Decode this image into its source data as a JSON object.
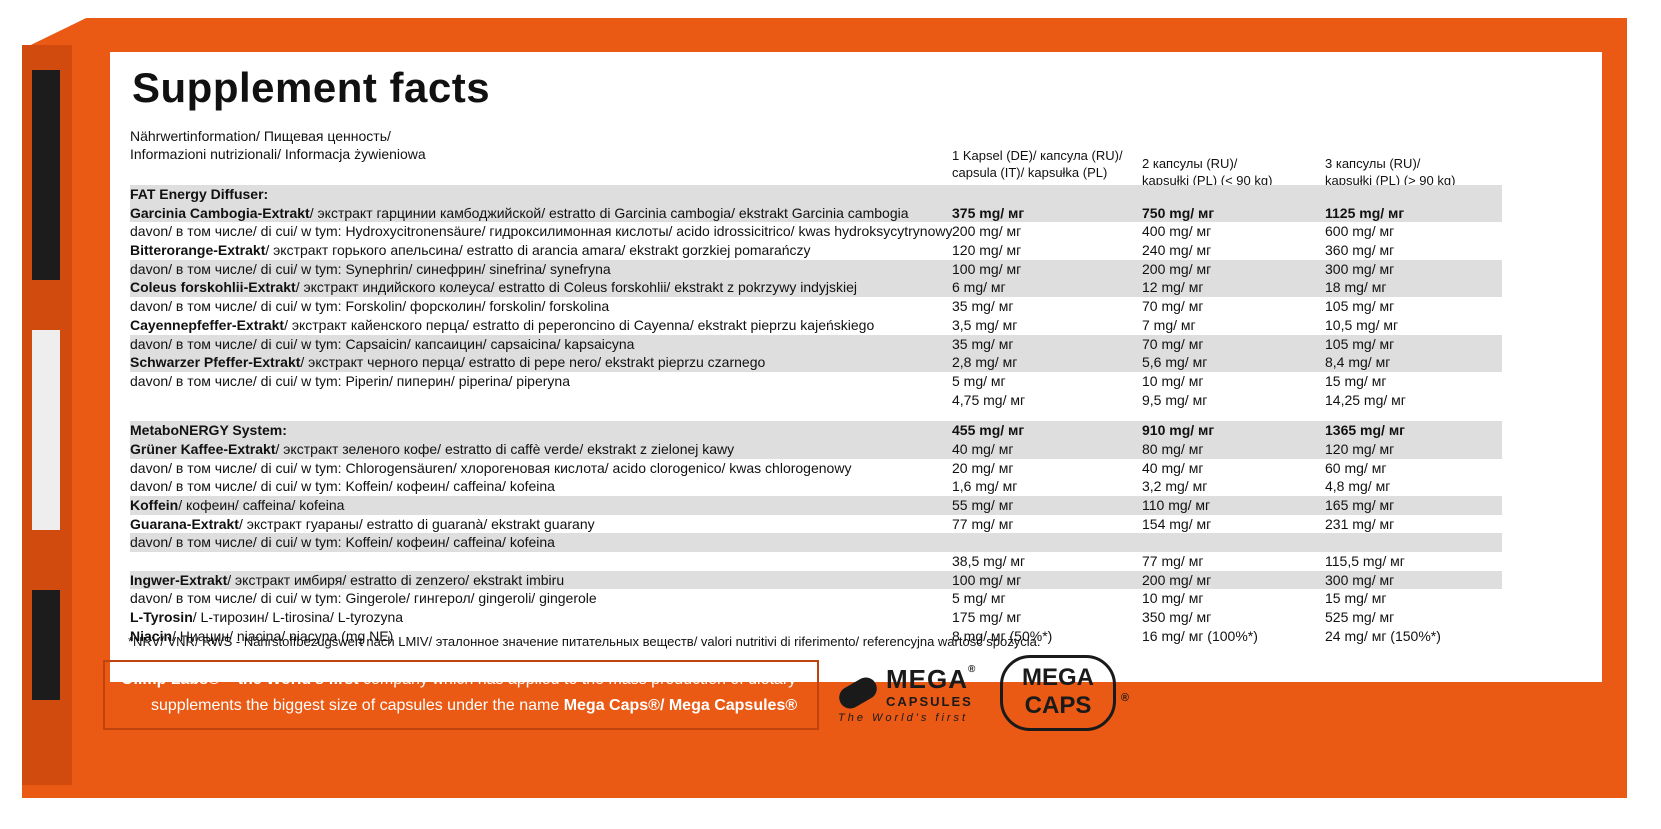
{
  "panel": {
    "title": "Supplement facts",
    "intro_line1": "Nährwertinformation/ Пищевая ценность/",
    "intro_line2": "Informazioni nutrizionali/ Informacja żywieniowa",
    "col1_line1": "1 Kapsel (DE)/ капсула (RU)/",
    "col1_line2": "capsula (IT)/ kapsułka (PL)",
    "col2_line1": "2 капсулы (RU)/",
    "col2_line2": "kapsułki (PL) (< 90 kg)",
    "col3_line1": "3 капсулы (RU)/",
    "col3_line2": "kapsułki (PL) (> 90 kg)"
  },
  "rows": [
    {
      "bold": "FAT Energy Diffuser:",
      "rest": "",
      "c1": "",
      "c2": "",
      "c3": ""
    },
    {
      "bold": "Garcinia Cambogia-Extrakt",
      "rest": "/ экстракт гарцинии камбоджийской/ estratto di Garcinia cambogia/ ekstrakt Garcinia cambogia",
      "c1": "375 mg/ мг",
      "c2": "750 mg/ мг",
      "c3": "1125 mg/ мг",
      "vb": true
    },
    {
      "bold": "",
      "rest": "davon/ в том числе/ di cui/ w tym: Hydroxycitronensäure/ гидроксилимонная кислоты/ acido idrossicitrico/ kwas hydroksycytrynowy",
      "c1": "200 mg/ мг",
      "c2": "400 mg/ мг",
      "c3": "600 mg/ мг"
    },
    {
      "bold": "Bitterorange-Extrakt",
      "rest": "/ экстракт горького апельсина/ estratto di arancia amara/ ekstrakt gorzkiej pomarańczy",
      "c1": "120 mg/ мг",
      "c2": "240 mg/ мг",
      "c3": "360 mg/ мг"
    },
    {
      "bold": "",
      "rest": "davon/ в том числе/ di cui/ w tym: Synephrin/ синефрин/ sinefrina/ synefryna",
      "c1": "100 mg/ мг",
      "c2": "200 mg/ мг",
      "c3": "300 mg/ мг"
    },
    {
      "bold": "Coleus forskohlii-Extrakt",
      "rest": "/ экстракт индийского колеуса/ estratto di Coleus forskohlii/ ekstrakt z pokrzywy indyjskiej",
      "c1": "6 mg/ мг",
      "c2": "12 mg/ мг",
      "c3": "18 mg/ мг"
    },
    {
      "bold": "",
      "rest": "davon/ в том числе/ di cui/ w tym: Forskolin/ форсколин/ forskolin/ forskolina",
      "c1": "35 mg/ мг",
      "c2": "70 mg/ мг",
      "c3": "105 mg/ мг"
    },
    {
      "bold": "Cayennepfeffer-Extrakt",
      "rest": "/ экстракт кайенского перца/ estratto di peperoncino di Cayenna/ ekstrakt pieprzu kajeńskiego",
      "c1": "3,5 mg/ мг",
      "c2": "7 mg/ мг",
      "c3": "10,5 mg/ мг"
    },
    {
      "bold": "",
      "rest": "davon/ в том числе/ di cui/ w tym: Capsaicin/ капсаицин/ capsaicina/ kapsaicyna",
      "c1": "35 mg/ мг",
      "c2": "70 mg/ мг",
      "c3": "105 mg/ мг"
    },
    {
      "bold": "Schwarzer Pfeffer-Extrakt",
      "rest": "/ экстракт черного перца/ estratto di pepe nero/ ekstrakt pieprzu czarnego",
      "c1": "2,8 mg/ мг",
      "c2": "5,6 mg/ мг",
      "c3": "8,4 mg/ мг"
    },
    {
      "bold": "",
      "rest": "davon/ в том числе/ di cui/ w tym: Piperin/ пиперин/ piperina/ piperyna",
      "c1": "5 mg/ мг",
      "c2": "10 mg/ мг",
      "c3": "15 mg/ мг"
    },
    {
      "bold": "",
      "rest": "",
      "c1": "4,75 mg/ мг",
      "c2": "9,5 mg/ мг",
      "c3": "14,25 mg/ мг"
    },
    {
      "bold": "MetaboNERGY System:",
      "rest": "",
      "c1": "455 mg/ мг",
      "c2": "910 mg/ мг",
      "c3": "1365 mg/ мг",
      "vb": true
    },
    {
      "bold": "Grüner Kaffee-Extrakt",
      "rest": "/ экстракт зеленого кофе/ estratto di caffè verde/ ekstrakt z zielonej kawy",
      "c1": "40 mg/ мг",
      "c2": "80 mg/ мг",
      "c3": "120 mg/ мг"
    },
    {
      "bold": "",
      "rest": "davon/ в том числе/ di cui/ w tym: Chlorogensäuren/ хлорогеновая кислота/ acido clorogenico/ kwas chlorogenowy",
      "c1": "20 mg/ мг",
      "c2": "40 mg/ мг",
      "c3": "60 mg/ мг"
    },
    {
      "bold": "",
      "rest": "davon/ в том числе/ di cui/ w tym: Koffein/ кофеин/ caffeina/ kofeina",
      "c1": "1,6 mg/ мг",
      "c2": "3,2 mg/ мг",
      "c3": "4,8 mg/ мг"
    },
    {
      "bold": "Koffein",
      "rest": "/ кофеин/ caffeina/ kofeina",
      "c1": "55 mg/ мг",
      "c2": "110 mg/ мг",
      "c3": "165 mg/ мг"
    },
    {
      "bold": "Guarana-Extrakt",
      "rest": "/ экстракт гуараны/ estratto di guaranà/ ekstrakt guarany",
      "c1": "77 mg/ мг",
      "c2": "154 mg/ мг",
      "c3": "231 mg/ мг"
    },
    {
      "bold": "",
      "rest": "davon/ в том числе/ di cui/ w tym: Koffein/ кофеин/ caffeina/ kofeina",
      "c1": "",
      "c2": "",
      "c3": ""
    },
    {
      "bold": "",
      "rest": "",
      "c1": "38,5 mg/ мг",
      "c2": "77 mg/ мг",
      "c3": "115,5 mg/ мг"
    },
    {
      "bold": "Ingwer-Extrakt",
      "rest": "/ экстракт имбиря/ estratto di zenzero/ ekstrakt imbiru",
      "c1": "100 mg/ мг",
      "c2": "200 mg/ мг",
      "c3": "300 mg/ мг"
    },
    {
      "bold": "",
      "rest": "davon/ в том числе/ di cui/ w tym: Gingerole/ гингерол/ gingeroli/ gingerole",
      "c1": "5 mg/ мг",
      "c2": "10 mg/ мг",
      "c3": "15 mg/ мг"
    },
    {
      "bold": "L-Tyrosin",
      "rest": "/ L-тирозин/ L-tirosina/ L-tyrozyna",
      "c1": "175 mg/ мг",
      "c2": "350 mg/ мг",
      "c3": "525 mg/ мг"
    },
    {
      "bold": "Niacin",
      "rest": "/ Ниацин/ niacina/ niacyna (mg NE)",
      "c1": "8 mg/ мг (50%*)",
      "c2": "16 mg/ мг (100%*)",
      "c3": "24 mg/ мг (150%*)"
    }
  ],
  "footnote": "*NRV/ VNR/ RWS - Nährstoffbezugswert nach LMIV/ эталонное значение питательных веществ/ valori nutritivi di riferimento/ referencyjna wartość spożycia.",
  "claim": {
    "l1_bold": "Olimp Labs® – the World's first",
    "l1_rest": " company which has applied to the mass production of dietary",
    "l2_rest": "supplements the biggest size of capsules under the name ",
    "l2_bold": "Mega Caps®/ Mega Capsules®"
  },
  "logo1": {
    "mega": "MEGA",
    "capsules": "CAPSULES",
    "tagline": "The World's first",
    "reg": "®"
  },
  "logo2": {
    "line1": "MEGA",
    "line2": "CAPS",
    "reg": "®"
  },
  "colors": {
    "orange": "#ea5a15",
    "row_shade": "#dedede"
  }
}
